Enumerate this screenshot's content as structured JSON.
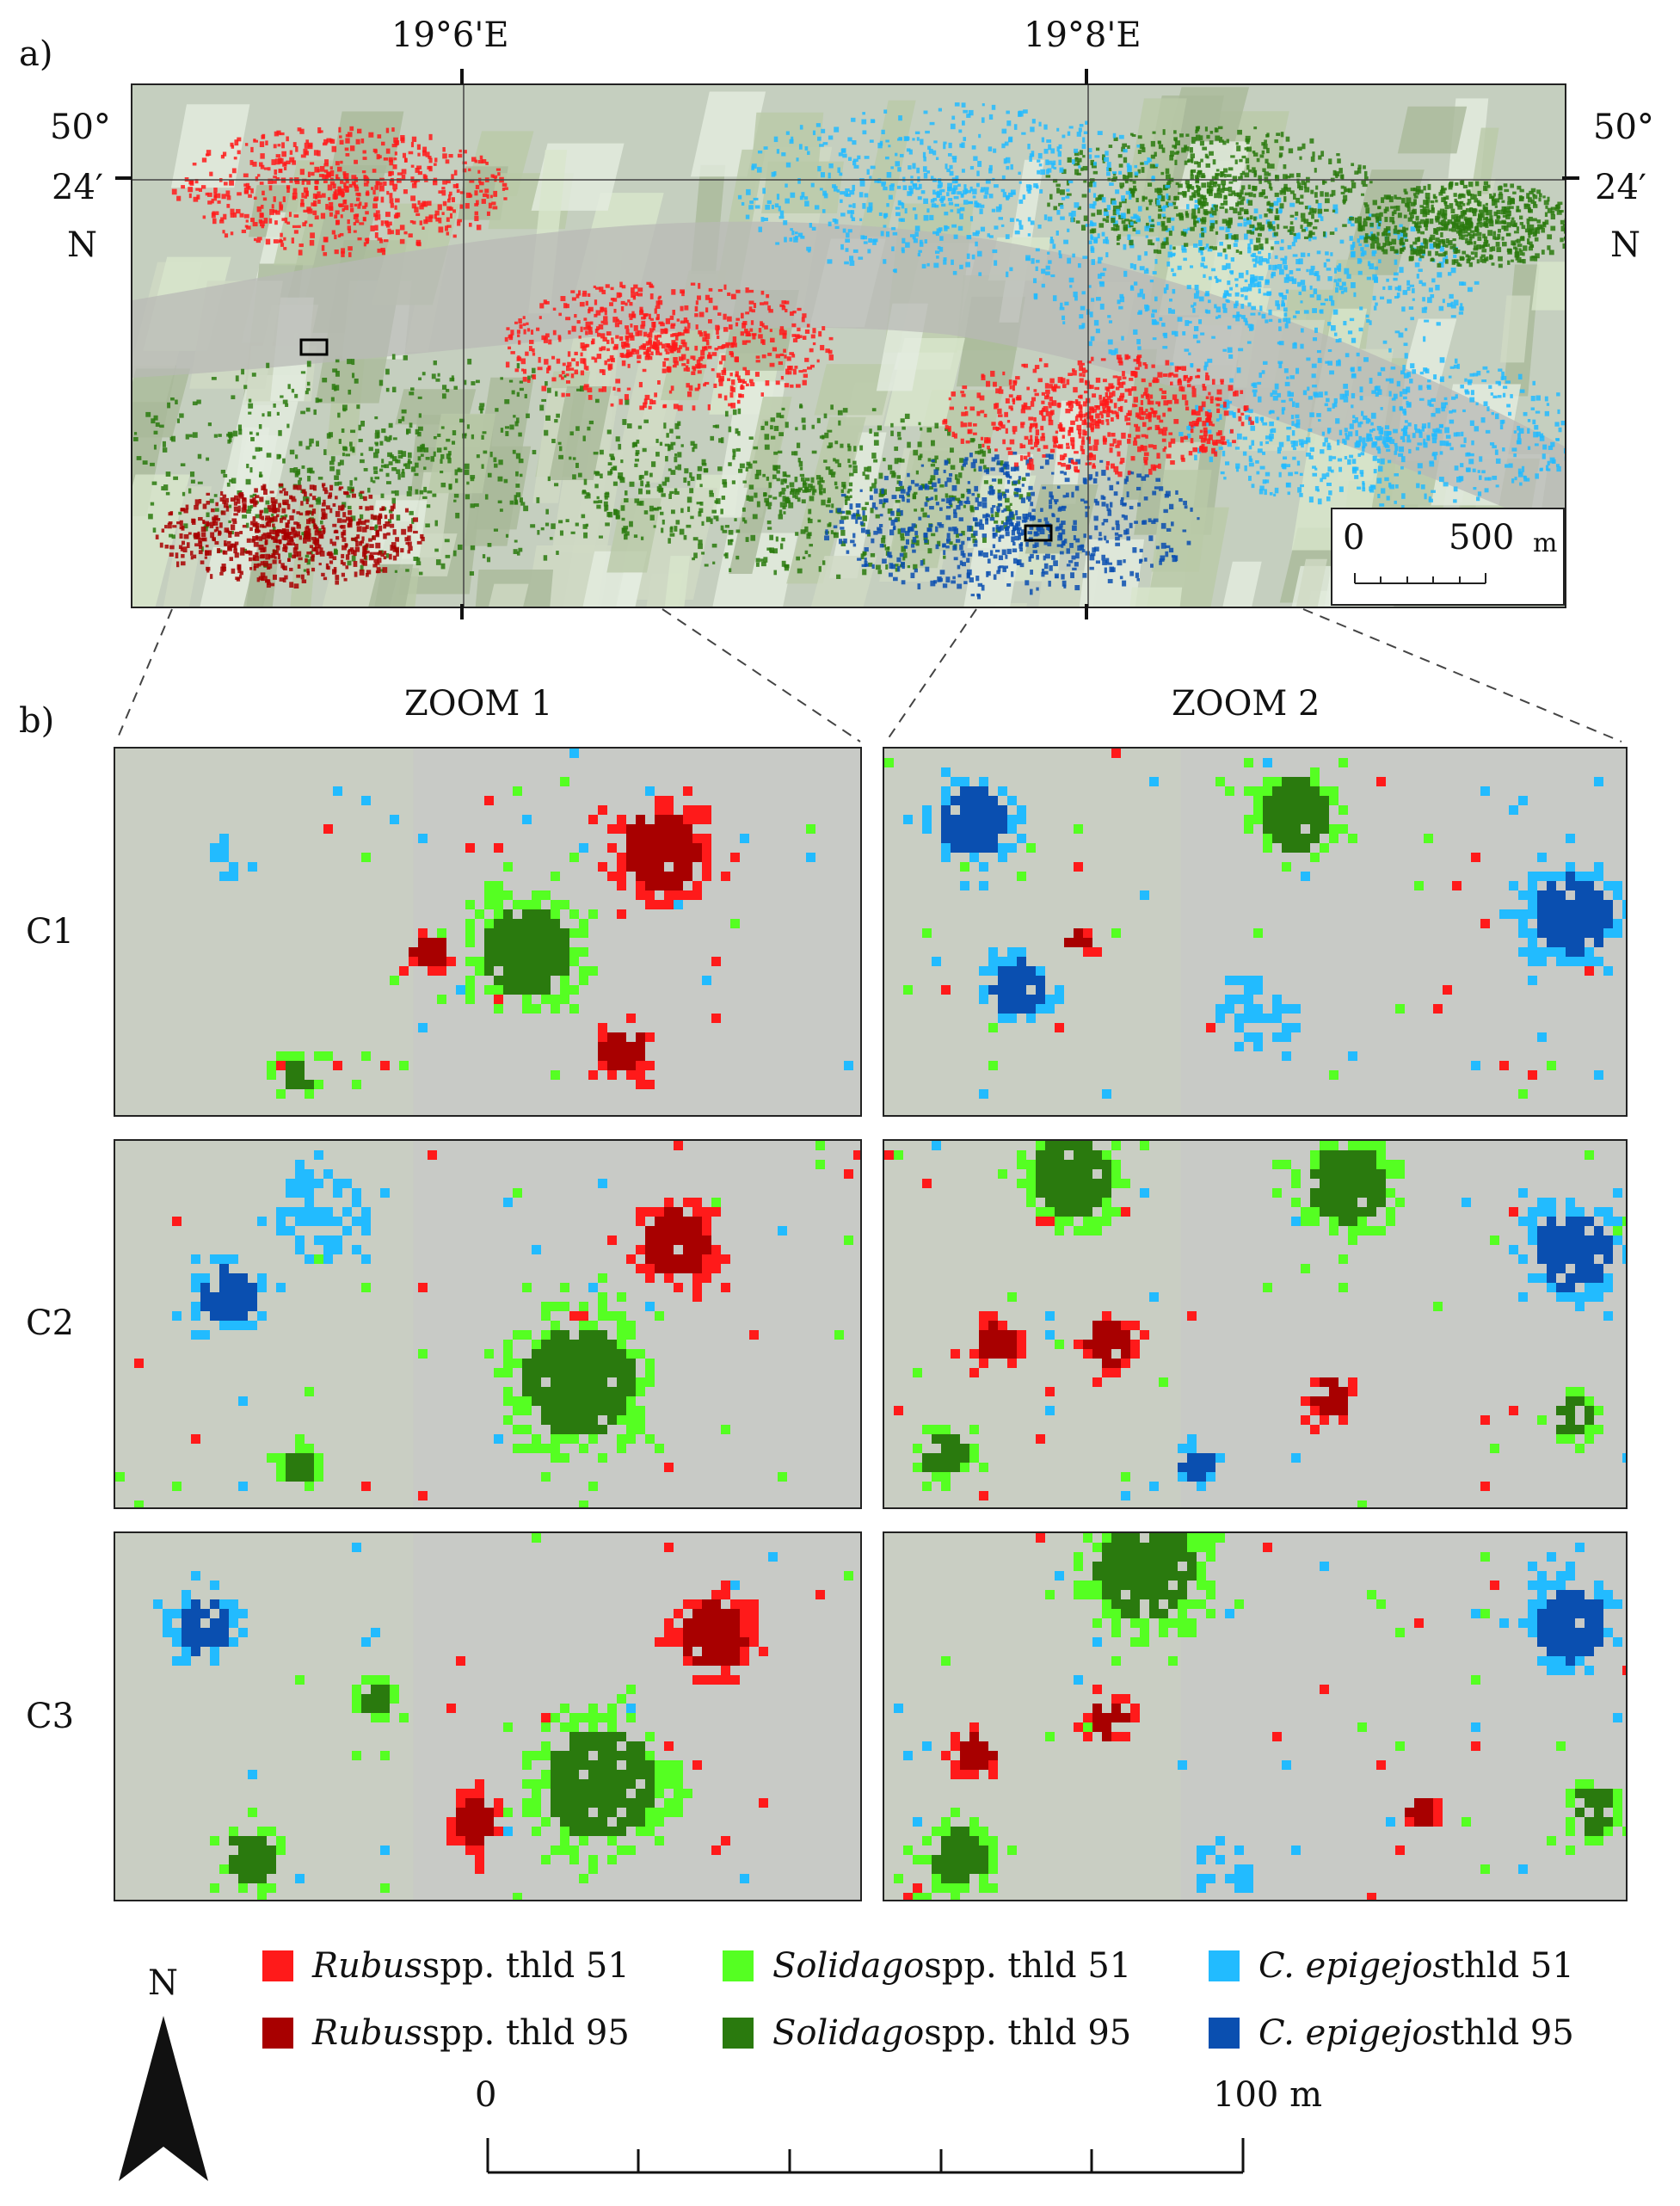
{
  "panel_labels": {
    "a": "a)",
    "b": "b)"
  },
  "coords": {
    "lon_west": "19°6'E",
    "lon_east": "19°8'E",
    "lat_left": [
      "50°",
      "24′",
      "N"
    ],
    "lat_right": [
      "50°",
      "24′",
      "N"
    ]
  },
  "overview_scale": {
    "zero": "0",
    "end": "500",
    "unit": "m"
  },
  "zoom_titles": [
    "ZOOM 1",
    "ZOOM 2"
  ],
  "row_labels": [
    "C1",
    "C2",
    "C3"
  ],
  "legend": [
    {
      "genus": "Rubus",
      "rest": " spp. thld 51",
      "color": "#ff1a1a"
    },
    {
      "genus": "Rubus",
      "rest": " spp. thld 95",
      "color": "#a80000"
    },
    {
      "genus": "Solidago",
      "rest": " spp.  thld 51",
      "color": "#55ff22"
    },
    {
      "genus": "Solidago",
      "rest": " spp.  thld 95",
      "color": "#2a7a0e"
    },
    {
      "genus": "C. epigejos",
      "rest": "  thld 51",
      "color": "#22bbff"
    },
    {
      "genus": "C. epigejos",
      "rest": "  thld 95",
      "color": "#0a4fb0"
    }
  ],
  "north_arrow": {
    "label": "N"
  },
  "zoom_scale": {
    "zero": "0",
    "end": "100 m"
  }
}
